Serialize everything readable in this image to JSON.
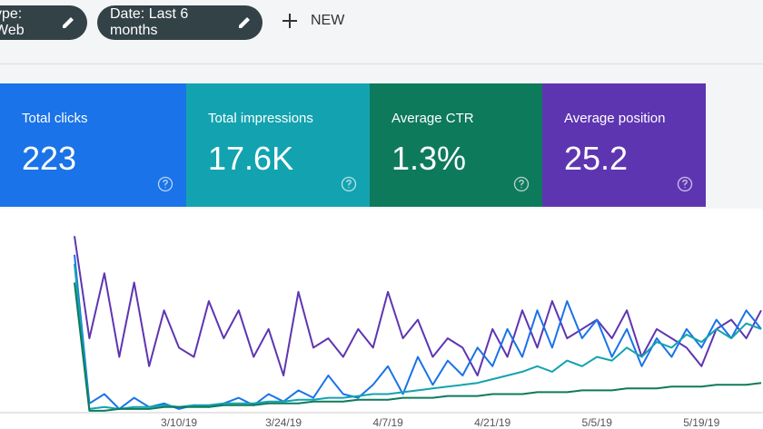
{
  "toolbar": {
    "chips": [
      "ype: Web",
      "Date: Last 6 months"
    ],
    "new": "NEW"
  },
  "cards": [
    {
      "label": "Total clicks",
      "value": "223",
      "color": "#1a73e8"
    },
    {
      "label": "Total impressions",
      "value": "17.6K",
      "color": "#13a3b0"
    },
    {
      "label": "Average CTR",
      "value": "1.3%",
      "color": "#0e7a5c"
    },
    {
      "label": "Average position",
      "value": "25.2",
      "color": "#5e35b1"
    }
  ],
  "chart_data": {
    "type": "line",
    "categories": [
      null,
      null,
      null,
      null,
      null,
      null,
      null,
      "3/10/19",
      null,
      null,
      null,
      null,
      null,
      null,
      "3/24/19",
      null,
      null,
      null,
      null,
      null,
      null,
      "4/7/19",
      null,
      null,
      null,
      null,
      null,
      null,
      "4/21/19",
      null,
      null,
      null,
      null,
      null,
      null,
      "5/5/19",
      null,
      null,
      null,
      null,
      null,
      null,
      "5/19/19",
      null,
      null,
      null,
      null
    ],
    "ylim": [
      0,
      100
    ],
    "series": [
      {
        "color": "#5e35b1",
        "values": [
          95,
          40,
          75,
          30,
          70,
          25,
          55,
          35,
          30,
          60,
          40,
          55,
          30,
          45,
          20,
          65,
          35,
          40,
          30,
          45,
          35,
          65,
          40,
          50,
          30,
          40,
          35,
          20,
          45,
          30,
          55,
          35,
          60,
          40,
          45,
          50,
          40,
          55,
          30,
          45,
          40,
          35,
          25,
          45,
          50,
          40,
          55
        ]
      },
      {
        "color": "#1a73e8",
        "values": [
          85,
          5,
          10,
          2,
          8,
          3,
          5,
          2,
          4,
          3,
          5,
          8,
          4,
          10,
          6,
          12,
          8,
          20,
          10,
          8,
          15,
          25,
          10,
          30,
          15,
          28,
          20,
          35,
          25,
          45,
          30,
          55,
          35,
          60,
          40,
          50,
          30,
          45,
          25,
          40,
          30,
          45,
          35,
          50,
          40,
          55,
          45
        ]
      },
      {
        "color": "#13a3b0",
        "values": [
          80,
          2,
          3,
          2,
          3,
          3,
          4,
          3,
          4,
          4,
          5,
          5,
          5,
          6,
          6,
          7,
          7,
          8,
          8,
          9,
          10,
          10,
          11,
          12,
          13,
          14,
          15,
          16,
          18,
          20,
          22,
          25,
          22,
          28,
          25,
          30,
          28,
          35,
          30,
          38,
          35,
          42,
          38,
          45,
          40,
          48,
          45
        ]
      },
      {
        "color": "#0e7a5c",
        "values": [
          70,
          1,
          1,
          2,
          2,
          2,
          3,
          3,
          3,
          3,
          4,
          4,
          4,
          5,
          5,
          5,
          6,
          6,
          6,
          7,
          7,
          7,
          8,
          8,
          8,
          9,
          9,
          9,
          10,
          10,
          10,
          11,
          11,
          11,
          12,
          12,
          12,
          13,
          13,
          13,
          14,
          14,
          14,
          15,
          15,
          15,
          16
        ]
      }
    ]
  }
}
